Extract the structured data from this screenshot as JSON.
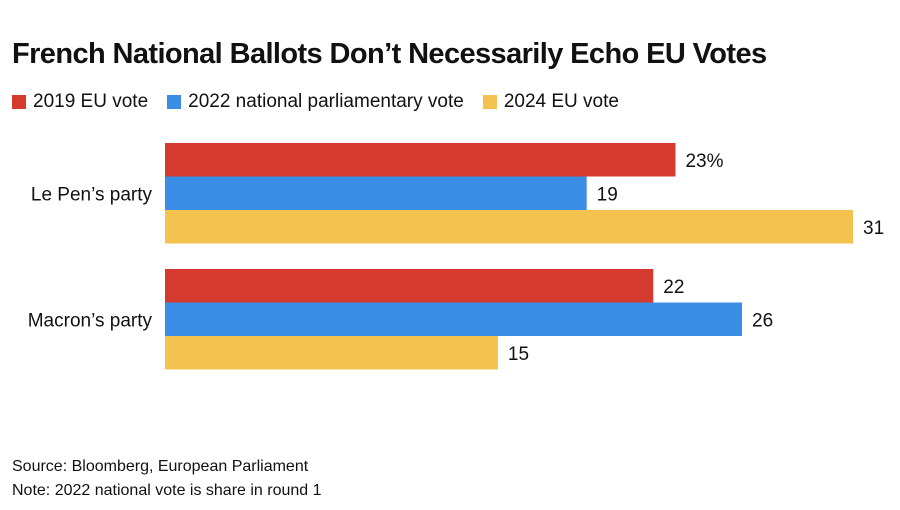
{
  "chart_data": {
    "type": "bar",
    "orientation": "horizontal",
    "title": "French National Ballots Don’t Necessarily Echo EU Votes",
    "categories": [
      "Le Pen’s party",
      "Macron’s party"
    ],
    "series": [
      {
        "name": "2019 EU vote",
        "color": "#d63a2f",
        "values": [
          23,
          22
        ],
        "labels": [
          "23%",
          "22"
        ]
      },
      {
        "name": "2022 national parliamentary vote",
        "color": "#3a8ee6",
        "values": [
          19,
          26
        ],
        "labels": [
          "19",
          "26"
        ]
      },
      {
        "name": "2024 EU vote",
        "color": "#f3c24f",
        "values": [
          31,
          15
        ],
        "labels": [
          "31",
          "15"
        ]
      }
    ],
    "xlim": [
      0,
      31
    ],
    "grid": false,
    "legend": "top-left",
    "xlabel": "",
    "ylabel": ""
  },
  "footer": {
    "source": "Source: Bloomberg, European Parliament",
    "note": "Note: 2022 national vote is share in round 1"
  }
}
